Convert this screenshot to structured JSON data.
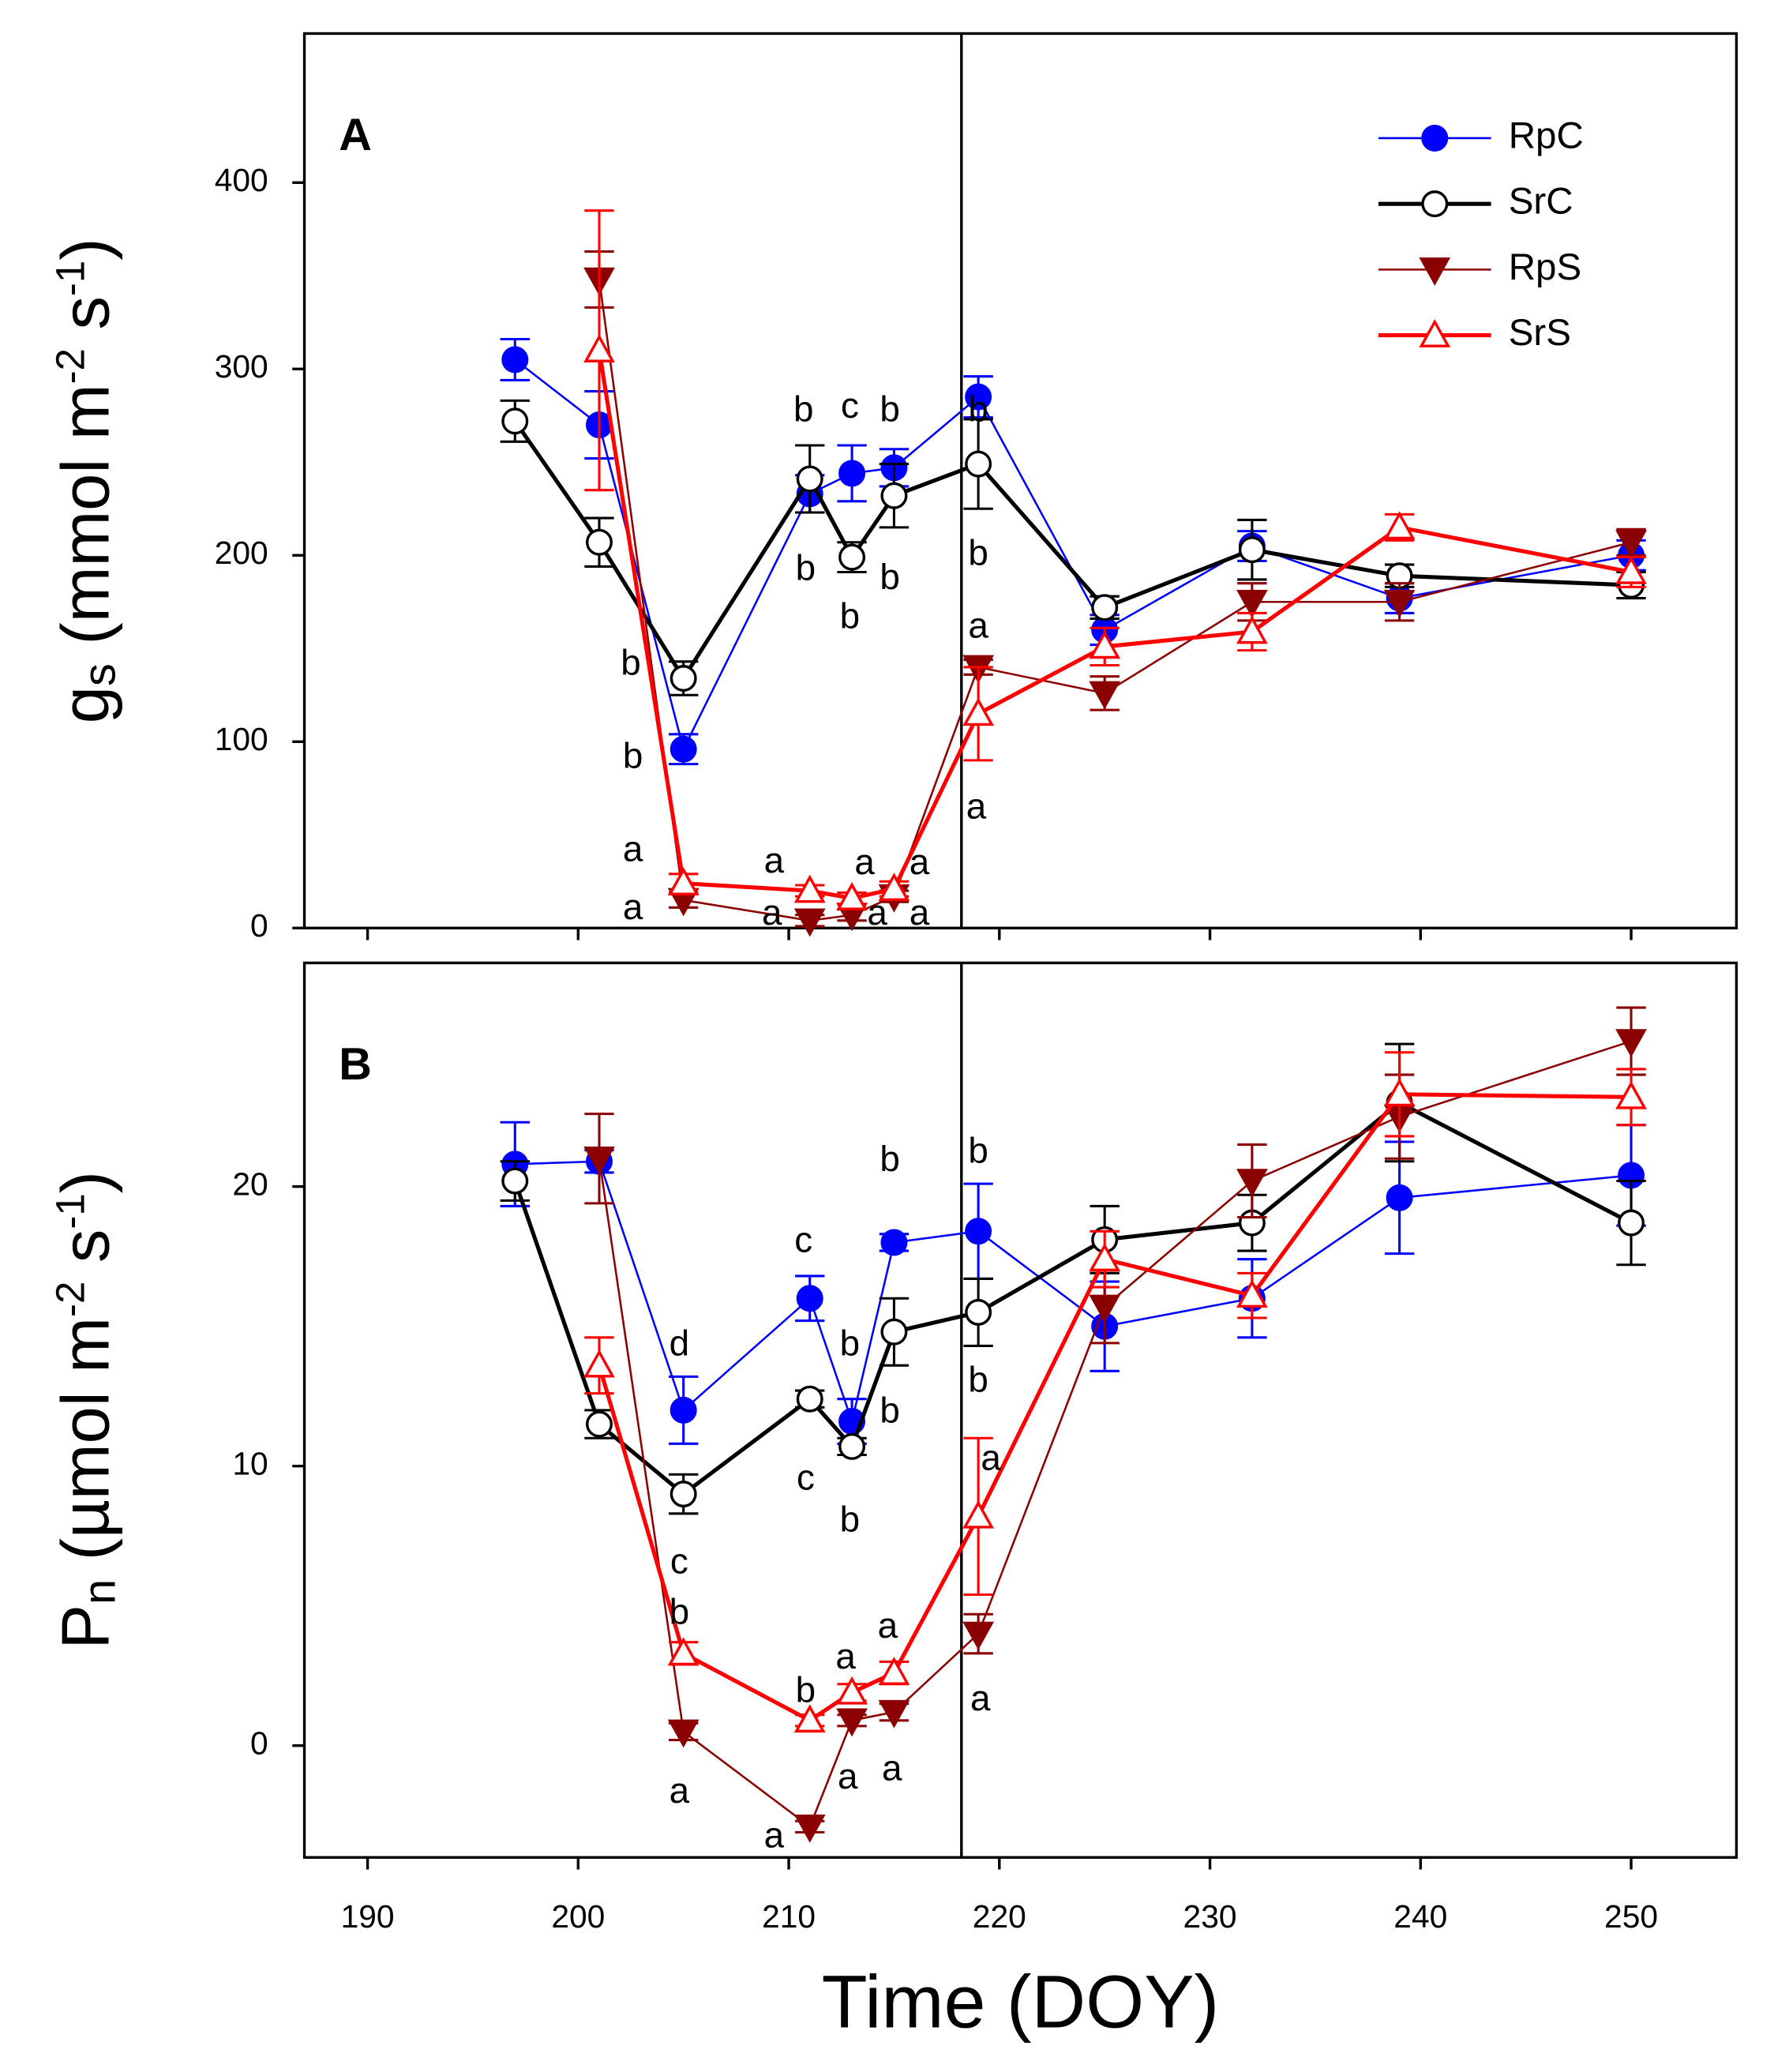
{
  "chart_data": [
    {
      "type": "line",
      "panel_label": "A",
      "ylabel": {
        "parts": [
          "g",
          "s",
          " (mmol m",
          "-2",
          " s",
          "-1",
          ")"
        ],
        "styles": [
          "normal",
          "sub",
          "normal",
          "sup",
          "normal",
          "sup",
          "normal"
        ]
      },
      "x": [
        197,
        201,
        205,
        211,
        213,
        215,
        219,
        225,
        232,
        239,
        250
      ],
      "xlim": [
        187,
        255
      ],
      "xticks": [
        190,
        200,
        210,
        220,
        230,
        240,
        250
      ],
      "ylim": [
        0,
        480
      ],
      "yticks": [
        0,
        100,
        200,
        300,
        400
      ],
      "vline": 218.2,
      "legend": "upper right",
      "series": [
        {
          "name": "RpC",
          "color": "#0000ff",
          "marker": "circle",
          "filled": true,
          "values": [
            305,
            270,
            96,
            233,
            244,
            247,
            285,
            160,
            205,
            177,
            200
          ],
          "errors": [
            11,
            18,
            8,
            10,
            15,
            10,
            11,
            8,
            8,
            8,
            8
          ]
        },
        {
          "name": "SrC",
          "color": "#000000",
          "marker": "circle",
          "filled": false,
          "values": [
            272,
            207,
            134,
            241,
            199,
            232,
            249,
            172,
            203,
            189,
            184
          ],
          "errors": [
            11,
            13,
            9,
            18,
            8,
            17,
            24,
            6,
            16,
            6,
            7
          ]
        },
        {
          "name": "RpS",
          "color": "#8b0000",
          "marker": "triangle-down",
          "filled": true,
          "values": [
            null,
            348,
            15,
            4,
            7,
            17,
            140,
            126,
            175,
            175,
            207
          ],
          "errors": [
            null,
            15,
            4,
            3,
            3,
            3,
            4,
            9,
            10,
            10,
            7
          ]
        },
        {
          "name": "SrS",
          "color": "#ff0000",
          "marker": "triangle-up",
          "filled": false,
          "values": [
            null,
            310,
            24,
            20,
            16,
            21,
            115,
            151,
            159,
            215,
            191
          ],
          "errors": [
            null,
            75,
            5,
            3,
            3,
            4,
            25,
            10,
            10,
            7,
            8
          ]
        }
      ],
      "annotations": [
        "b",
        "c",
        "b",
        "b",
        "b",
        "b",
        "b",
        "b",
        "a",
        "b",
        "b",
        "a",
        "a",
        "a",
        "a",
        "a",
        "a",
        "a",
        "a",
        "a"
      ]
    },
    {
      "type": "line",
      "panel_label": "B",
      "ylabel": {
        "parts": [
          "P",
          "n",
          " (µmol m",
          "-2",
          " s",
          "-1",
          ")"
        ],
        "styles": [
          "normal",
          "sub",
          "normal",
          "sup",
          "normal",
          "sup",
          "normal"
        ]
      },
      "xlabel": "Time (DOY)",
      "x": [
        197,
        201,
        205,
        211,
        213,
        215,
        219,
        225,
        232,
        239,
        250
      ],
      "xlim": [
        187,
        255
      ],
      "xticks": [
        190,
        200,
        210,
        220,
        230,
        240,
        250
      ],
      "ylim": [
        -4,
        28
      ],
      "yticks": [
        0,
        10,
        20
      ],
      "vline": 218.2,
      "series": [
        {
          "color": "#0000ff",
          "marker": "circle",
          "filled": true,
          "values": [
            20.8,
            20.9,
            12.0,
            16.0,
            11.6,
            18.0,
            18.4,
            15.0,
            16.0,
            19.6,
            20.4
          ],
          "errors": [
            1.5,
            0.4,
            1.2,
            0.8,
            0.8,
            0.3,
            1.7,
            1.6,
            1.4,
            2.0,
            1.8
          ]
        },
        {
          "color": "#000000",
          "marker": "circle",
          "filled": false,
          "values": [
            20.2,
            11.5,
            9.0,
            12.4,
            10.7,
            14.8,
            15.5,
            18.1,
            18.7,
            23.0,
            18.7
          ],
          "errors": [
            0.7,
            0.5,
            0.7,
            0.3,
            0.3,
            1.2,
            1.2,
            1.2,
            1.0,
            2.1,
            1.5
          ]
        },
        {
          "color": "#8b0000",
          "marker": "triangle-down",
          "filled": true,
          "values": [
            null,
            21.0,
            0.5,
            -2.9,
            0.9,
            1.2,
            4.0,
            15.7,
            20.2,
            22.5,
            25.2
          ],
          "errors": [
            null,
            1.6,
            0.3,
            0.2,
            0.2,
            0.3,
            0.7,
            1.3,
            1.3,
            1.5,
            1.2
          ]
        },
        {
          "color": "#ff0000",
          "marker": "triangle-up",
          "filled": false,
          "values": [
            null,
            13.6,
            3.3,
            0.9,
            1.9,
            2.6,
            8.2,
            17.4,
            16.1,
            23.3,
            23.2
          ],
          "errors": [
            null,
            1.0,
            0.4,
            0.2,
            0.3,
            0.4,
            2.8,
            1.0,
            0.8,
            1.5,
            1.0
          ]
        }
      ],
      "annotations": [
        "d",
        "c",
        "b",
        "b",
        "b",
        "c",
        "b",
        "b",
        "b",
        "a",
        "c",
        "b",
        "a",
        "b",
        "a",
        "a",
        "a",
        "a",
        "a",
        "a"
      ]
    }
  ]
}
